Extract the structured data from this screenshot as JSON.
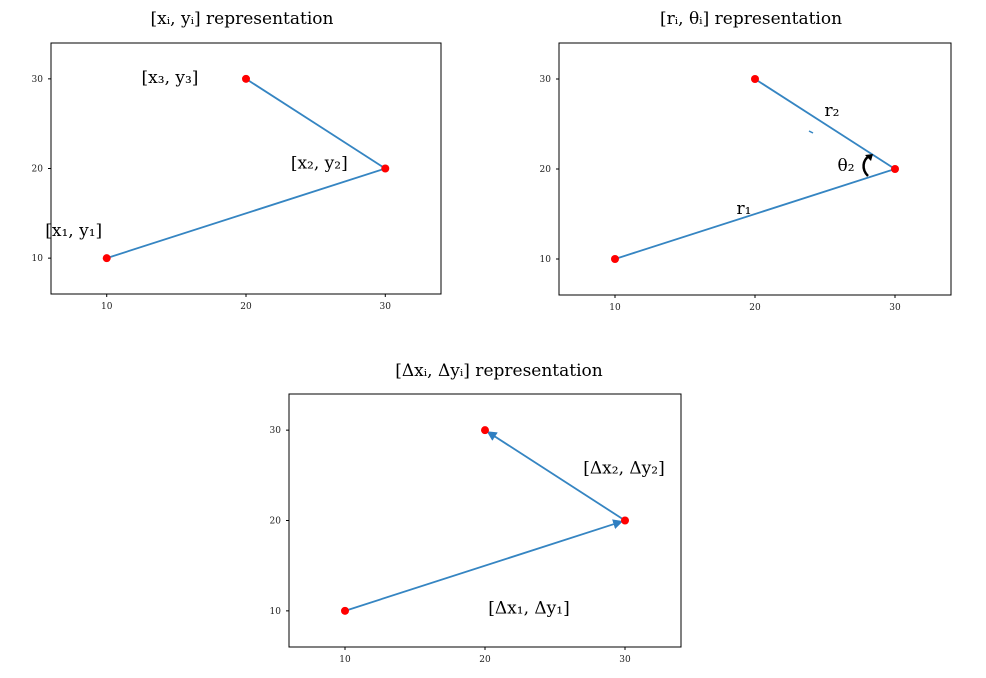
{
  "colors": {
    "line": "#3585c2",
    "point": "#ff0000",
    "axes": "#000000",
    "text": "#000000"
  },
  "chart_data": [
    {
      "type": "line",
      "title": "[xᵢ, yᵢ] representation",
      "xlim": [
        6,
        34
      ],
      "ylim": [
        6,
        34
      ],
      "x_ticks": [
        10,
        20,
        30
      ],
      "y_ticks": [
        10,
        20,
        30
      ],
      "tick_labels": [
        "10",
        "20",
        "30"
      ],
      "points": [
        {
          "x": 10,
          "y": 10
        },
        {
          "x": 30,
          "y": 20
        },
        {
          "x": 20,
          "y": 30
        }
      ],
      "arrows": false,
      "annotations": [
        {
          "text": "[x₁,  y₁]",
          "at": 0
        },
        {
          "text": "[x₂,  y₂]",
          "at": 1
        },
        {
          "text": "[x₃,  y₃]",
          "at": 2
        }
      ],
      "extras": {
        "theta_label": ""
      }
    },
    {
      "type": "line",
      "title": "[rᵢ, θᵢ] representation",
      "xlim": [
        6,
        34
      ],
      "ylim": [
        6,
        34
      ],
      "x_ticks": [
        10,
        20,
        30
      ],
      "y_ticks": [
        10,
        20,
        30
      ],
      "tick_labels": [
        "10",
        "20",
        "30"
      ],
      "points": [
        {
          "x": 10,
          "y": 10
        },
        {
          "x": 30,
          "y": 20
        },
        {
          "x": 20,
          "y": 30
        }
      ],
      "arrows": false,
      "annotations": [
        {
          "text": "r₁",
          "at": "seg0"
        },
        {
          "text": "r₂",
          "at": "seg1"
        }
      ],
      "extras": {
        "theta_label": "θ₂"
      }
    },
    {
      "type": "line",
      "title": "[Δxᵢ, Δyᵢ] representation",
      "xlim": [
        6,
        34
      ],
      "ylim": [
        6,
        34
      ],
      "x_ticks": [
        10,
        20,
        30
      ],
      "y_ticks": [
        10,
        20,
        30
      ],
      "tick_labels": [
        "10",
        "20",
        "30"
      ],
      "points": [
        {
          "x": 10,
          "y": 10
        },
        {
          "x": 30,
          "y": 20
        },
        {
          "x": 20,
          "y": 30
        }
      ],
      "arrows": true,
      "annotations": [
        {
          "text": "[Δx₁,  Δy₁]",
          "at": "seg0"
        },
        {
          "text": "[Δx₂,  Δy₂]",
          "at": "seg1"
        }
      ],
      "extras": {
        "theta_label": ""
      }
    }
  ]
}
